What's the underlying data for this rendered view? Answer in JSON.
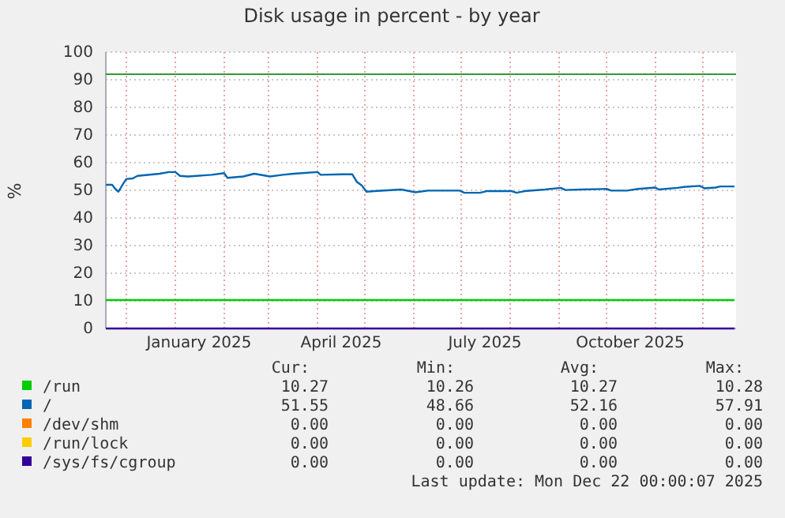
{
  "chart_data": {
    "type": "line",
    "title": "Disk usage in percent - by year",
    "ylabel": "%",
    "xlim": [
      "2024-11-18",
      "2025-12-22"
    ],
    "xticks": [
      {
        "value": "2024-12-01",
        "label": null
      },
      {
        "value": "2025-01-01",
        "label": null
      },
      {
        "value": "2025-01-16",
        "label": "January 2025"
      },
      {
        "value": "2025-02-01",
        "label": null
      },
      {
        "value": "2025-03-01",
        "label": null
      },
      {
        "value": "2025-04-01",
        "label": null
      },
      {
        "value": "2025-04-16",
        "label": "April 2025"
      },
      {
        "value": "2025-05-01",
        "label": null
      },
      {
        "value": "2025-06-01",
        "label": null
      },
      {
        "value": "2025-07-01",
        "label": null
      },
      {
        "value": "2025-07-16",
        "label": "July 2025"
      },
      {
        "value": "2025-08-01",
        "label": null
      },
      {
        "value": "2025-09-01",
        "label": null
      },
      {
        "value": "2025-10-01",
        "label": null
      },
      {
        "value": "2025-10-16",
        "label": "October 2025"
      },
      {
        "value": "2025-11-01",
        "label": null
      },
      {
        "value": "2025-12-01",
        "label": null
      }
    ],
    "ylim": [
      0,
      100
    ],
    "yticks": [
      0,
      10,
      20,
      30,
      40,
      50,
      60,
      70,
      80,
      90,
      100
    ],
    "grid": true,
    "legend": "bottom",
    "ref_lines": [
      {
        "axis": "y",
        "value": 92,
        "color": "#339933"
      }
    ],
    "series": [
      {
        "name": "/run",
        "color": "#00cc00",
        "x": [
          "2024-11-18",
          "2025-12-21"
        ],
        "values": [
          10.3,
          10.3
        ]
      },
      {
        "name": "/",
        "color": "#0066b3",
        "x": [
          "2024-11-18",
          "2024-11-22",
          "2024-11-24",
          "2024-11-26",
          "2024-11-29",
          "2024-12-01",
          "2024-12-05",
          "2024-12-08",
          "2024-12-22",
          "2024-12-28",
          "2025-01-01",
          "2025-01-04",
          "2025-01-09",
          "2025-01-24",
          "2025-02-01",
          "2025-02-03",
          "2025-02-13",
          "2025-02-20",
          "2025-03-02",
          "2025-03-10",
          "2025-03-17",
          "2025-04-01",
          "2025-04-03",
          "2025-04-17",
          "2025-04-23",
          "2025-04-26",
          "2025-04-29",
          "2025-05-02",
          "2025-05-07",
          "2025-05-24",
          "2025-06-02",
          "2025-06-10",
          "2025-06-30",
          "2025-07-03",
          "2025-07-13",
          "2025-07-17",
          "2025-08-02",
          "2025-08-05",
          "2025-08-10",
          "2025-08-23",
          "2025-09-02",
          "2025-09-05",
          "2025-09-15",
          "2025-10-01",
          "2025-10-04",
          "2025-10-14",
          "2025-10-21",
          "2025-11-01",
          "2025-11-03",
          "2025-11-15",
          "2025-11-19",
          "2025-11-29",
          "2025-12-02",
          "2025-12-09",
          "2025-12-12",
          "2025-12-21"
        ],
        "values": [
          52.0,
          52.0,
          50.5,
          49.5,
          52.4,
          54.1,
          54.3,
          55.2,
          56.0,
          56.6,
          56.6,
          55.2,
          55.0,
          55.6,
          56.2,
          54.5,
          55.0,
          56.0,
          55.0,
          55.6,
          56.0,
          56.6,
          55.6,
          55.8,
          55.8,
          53.0,
          51.8,
          49.5,
          49.7,
          50.3,
          49.3,
          49.9,
          49.9,
          49.1,
          49.1,
          49.7,
          49.7,
          49.1,
          49.7,
          50.3,
          50.9,
          50.1,
          50.3,
          50.5,
          49.9,
          49.9,
          50.5,
          51.0,
          50.3,
          50.9,
          51.2,
          51.6,
          50.7,
          51.0,
          51.4,
          51.4
        ]
      },
      {
        "name": "/dev/shm",
        "color": "#ff8000"
      },
      {
        "name": "/run/lock",
        "color": "#ffcc00"
      },
      {
        "name": "/sys/fs/cgroup",
        "color": "#330099",
        "x": [
          "2024-11-18",
          "2025-12-21"
        ],
        "values": [
          0,
          0
        ]
      }
    ],
    "annotations": [
      "Cur:",
      "Min:",
      "Avg:",
      "Max:",
      "10.27",
      "10.26",
      "10.27",
      "10.28",
      "51.55",
      "48.66",
      "52.16",
      "57.91",
      "0.00",
      "0.00",
      "0.00",
      "0.00",
      "0.00",
      "0.00",
      "0.00",
      "0.00",
      "0.00",
      "0.00",
      "0.00",
      "0.00",
      "Last update: Mon Dec 22 00:00:07 2025"
    ]
  }
}
